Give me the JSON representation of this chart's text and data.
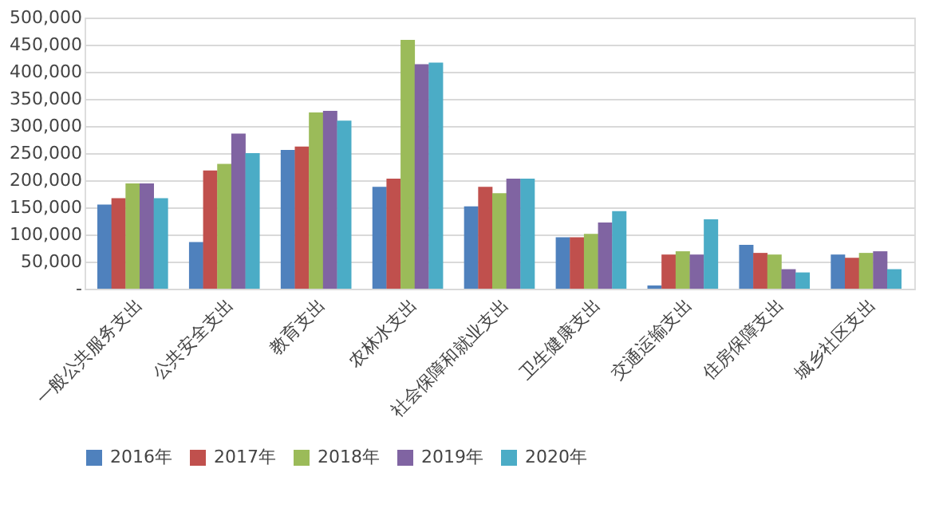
{
  "chart_data": {
    "type": "bar",
    "categories": [
      "一般公共服务支出",
      "公共安全支出",
      "教育支出",
      "农林水支出",
      "社会保障和就业支出",
      "卫生健康支出",
      "交通运输支出",
      "住房保障支出",
      "城乡社区支出"
    ],
    "series": [
      {
        "name": "2016年",
        "color": "#4f81bd",
        "values": [
          155000,
          86000,
          256000,
          188000,
          152000,
          95000,
          6000,
          81000,
          63000
        ]
      },
      {
        "name": "2017年",
        "color": "#c0504d",
        "values": [
          167000,
          218000,
          262000,
          203000,
          188000,
          95000,
          63000,
          66000,
          57000
        ]
      },
      {
        "name": "2018年",
        "color": "#9bbb59",
        "values": [
          194000,
          230000,
          325000,
          459000,
          176000,
          101000,
          69000,
          63000,
          66000
        ]
      },
      {
        "name": "2019年",
        "color": "#8064a2",
        "values": [
          194000,
          286000,
          328000,
          414000,
          203000,
          122000,
          63000,
          36000,
          69000
        ]
      },
      {
        "name": "2020年",
        "color": "#4bacc6",
        "values": [
          167000,
          250000,
          310000,
          417000,
          203000,
          143000,
          128000,
          30000,
          36000
        ]
      }
    ],
    "ylim": [
      0,
      500000
    ],
    "yticks": [
      {
        "value": 0,
        "label": "-"
      },
      {
        "value": 50000,
        "label": "50,000"
      },
      {
        "value": 100000,
        "label": "100,000"
      },
      {
        "value": 150000,
        "label": "150,000"
      },
      {
        "value": 200000,
        "label": "200,000"
      },
      {
        "value": 250000,
        "label": "250,000"
      },
      {
        "value": 300000,
        "label": "300,000"
      },
      {
        "value": 350000,
        "label": "350,000"
      },
      {
        "value": 400000,
        "label": "400,000"
      },
      {
        "value": 450000,
        "label": "450,000"
      },
      {
        "value": 500000,
        "label": "500,000"
      }
    ],
    "grid": "y",
    "legend": "bottom"
  }
}
